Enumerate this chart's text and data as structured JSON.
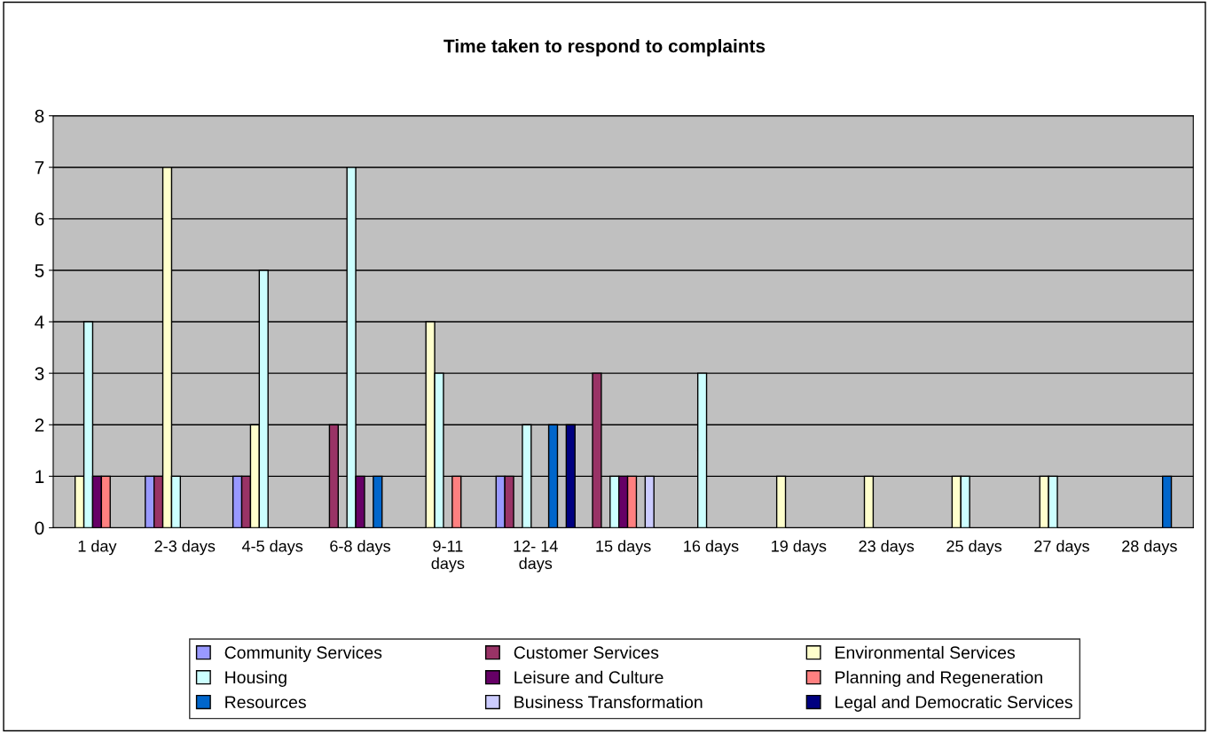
{
  "chart_data": {
    "type": "bar",
    "title": "Time taken to respond to complaints",
    "categories": [
      "1 day",
      "2-3 days",
      "4-5 days",
      "6-8 days",
      "9-11 days",
      "12- 14 days",
      "15 days",
      "16 days",
      "19 days",
      "23 days",
      "25 days",
      "27 days",
      "28 days"
    ],
    "series": [
      {
        "name": "Community Services",
        "color": "#9999ff",
        "values": [
          null,
          1,
          1,
          null,
          null,
          1,
          null,
          null,
          null,
          null,
          null,
          null,
          null
        ]
      },
      {
        "name": "Customer Services",
        "color": "#993366",
        "values": [
          null,
          1,
          1,
          2,
          null,
          1,
          3,
          null,
          null,
          null,
          null,
          null,
          null
        ]
      },
      {
        "name": "Environmental Services",
        "color": "#ffffcc",
        "values": [
          1,
          7,
          2,
          null,
          4,
          null,
          null,
          null,
          1,
          1,
          1,
          1,
          null
        ]
      },
      {
        "name": "Housing",
        "color": "#ccffff",
        "values": [
          4,
          1,
          5,
          7,
          3,
          2,
          1,
          3,
          null,
          null,
          1,
          1,
          null
        ]
      },
      {
        "name": "Leisure and Culture",
        "color": "#660066",
        "values": [
          1,
          null,
          null,
          1,
          null,
          null,
          1,
          null,
          null,
          null,
          null,
          null,
          null
        ]
      },
      {
        "name": "Planning and Regeneration",
        "color": "#ff8080",
        "values": [
          1,
          null,
          null,
          null,
          1,
          null,
          1,
          null,
          null,
          null,
          null,
          null,
          null
        ]
      },
      {
        "name": "Resources",
        "color": "#0066cc",
        "values": [
          null,
          null,
          null,
          1,
          null,
          2,
          null,
          null,
          null,
          null,
          null,
          null,
          1
        ]
      },
      {
        "name": "Business Transformation",
        "color": "#ccccff",
        "values": [
          null,
          null,
          null,
          null,
          null,
          null,
          1,
          null,
          null,
          null,
          null,
          null,
          null
        ]
      },
      {
        "name": "Legal and Democratic Services",
        "color": "#000080",
        "values": [
          null,
          null,
          null,
          null,
          null,
          2,
          null,
          null,
          null,
          null,
          null,
          null,
          null
        ]
      }
    ],
    "ylim": [
      0,
      8
    ],
    "yticks": [
      0,
      1,
      2,
      3,
      4,
      5,
      6,
      7,
      8
    ],
    "grid": "y",
    "legend": "bottom"
  }
}
